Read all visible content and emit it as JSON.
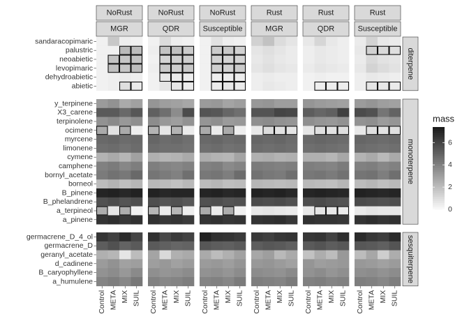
{
  "chart_data": {
    "type": "heatmap",
    "facet_columns": [
      {
        "rust": "NoRust",
        "genotype": "MGR"
      },
      {
        "rust": "NoRust",
        "genotype": "QDR"
      },
      {
        "rust": "NoRust",
        "genotype": "Susceptible"
      },
      {
        "rust": "Rust",
        "genotype": "MGR"
      },
      {
        "rust": "Rust",
        "genotype": "QDR"
      },
      {
        "rust": "Rust",
        "genotype": "Susceptible"
      }
    ],
    "x_categories": [
      "Control",
      "META",
      "MIX",
      "SUIL"
    ],
    "row_groups": [
      {
        "name": "diterpene",
        "compounds": [
          "sandaracopimaric",
          "palustric",
          "neoabietic",
          "levopimaric",
          "dehydroabietic",
          "abietic"
        ]
      },
      {
        "name": "monoterpene",
        "compounds": [
          "y_terpinene",
          "X3_carene",
          "terpinolene",
          "ocimene",
          "myrcene",
          "limonene",
          "cymene",
          "camphene",
          "bornyl_acetate",
          "borneol",
          "B_pinene",
          "B_phelandrene",
          "a_terpineol",
          "a_pinene"
        ]
      },
      {
        "name": "sesquiterpene",
        "compounds": [
          "germacrene_D_4_ol",
          "germacrene_D",
          "geranyl_acetate",
          "d_cadinene",
          "B_caryophyllene",
          "a_humulene"
        ]
      }
    ],
    "legend": {
      "title": "mass",
      "breaks": [
        0,
        2,
        4,
        6
      ],
      "limits": [
        0,
        7.4
      ],
      "color_low": "#f7f7f7",
      "color_high": "#1c1c1c"
    },
    "values": {
      "sandaracopimaric": [
        [
          0.2,
          1.6,
          0.3,
          0.2
        ],
        [
          0.2,
          0.9,
          0.3,
          0.2
        ],
        [
          0.2,
          0.7,
          0.3,
          0.2
        ],
        [
          1.3,
          1.8,
          0.9,
          0.6
        ],
        [
          0.5,
          1.1,
          0.5,
          0.3
        ],
        [
          0.4,
          1.2,
          0.5,
          0.4
        ]
      ],
      "palustric": [
        [
          0.2,
          0.2,
          2.1,
          2.0
        ],
        [
          0.3,
          1.8,
          1.9,
          1.5
        ],
        [
          0.2,
          1.5,
          1.6,
          1.3
        ],
        [
          0.6,
          0.8,
          0.6,
          0.4
        ],
        [
          0.3,
          0.5,
          0.4,
          0.3
        ],
        [
          0.5,
          1.3,
          1.0,
          0.8
        ]
      ],
      "neoabietic": [
        [
          0.2,
          1.8,
          1.7,
          1.8
        ],
        [
          0.2,
          1.2,
          1.4,
          1.4
        ],
        [
          0.2,
          1.3,
          1.2,
          1.2
        ],
        [
          0.5,
          0.7,
          0.5,
          0.4
        ],
        [
          0.3,
          0.5,
          0.4,
          0.3
        ],
        [
          0.4,
          1.0,
          0.7,
          0.6
        ]
      ],
      "levopimaric": [
        [
          0.2,
          1.9,
          1.7,
          2.0
        ],
        [
          0.3,
          1.6,
          1.4,
          1.6
        ],
        [
          0.2,
          1.4,
          1.3,
          1.5
        ],
        [
          0.6,
          0.8,
          0.6,
          0.5
        ],
        [
          0.4,
          0.6,
          0.5,
          0.4
        ],
        [
          0.5,
          1.2,
          0.9,
          0.7
        ]
      ],
      "dehydroabietic": [
        [
          0.2,
          0.3,
          0.4,
          0.3
        ],
        [
          0.2,
          0.5,
          0.4,
          0.3
        ],
        [
          0.2,
          0.3,
          0.3,
          0.3
        ],
        [
          0.3,
          0.4,
          0.3,
          0.3
        ],
        [
          0.2,
          0.3,
          0.2,
          0.2
        ],
        [
          0.3,
          0.5,
          0.4,
          0.3
        ]
      ],
      "abietic": [
        [
          0.2,
          0.3,
          0.8,
          0.4
        ],
        [
          0.2,
          0.6,
          0.6,
          0.4
        ],
        [
          0.2,
          0.4,
          0.5,
          0.4
        ],
        [
          0.3,
          0.5,
          0.4,
          0.3
        ],
        [
          0.2,
          0.3,
          0.3,
          0.3
        ],
        [
          0.3,
          0.6,
          0.5,
          0.4
        ]
      ],
      "y_terpinene": [
        [
          3.1,
          3.4,
          2.6,
          2.9
        ],
        [
          3.3,
          3.0,
          2.9,
          2.7
        ],
        [
          3.1,
          3.2,
          2.8,
          3.0
        ],
        [
          3.2,
          3.3,
          3.0,
          3.0
        ],
        [
          3.3,
          3.1,
          3.0,
          2.9
        ],
        [
          3.1,
          3.3,
          3.0,
          2.9
        ]
      ],
      "X3_carene": [
        [
          5.3,
          5.3,
          4.8,
          5.4
        ],
        [
          5.1,
          4.6,
          3.6,
          5.8
        ],
        [
          5.5,
          5.4,
          4.9,
          4.6
        ],
        [
          5.5,
          5.5,
          6.0,
          5.9
        ],
        [
          5.2,
          4.9,
          5.1,
          6.2
        ],
        [
          5.8,
          5.6,
          4.4,
          5.0
        ]
      ],
      "terpinolene": [
        [
          3.4,
          3.7,
          3.2,
          3.5
        ],
        [
          3.6,
          3.2,
          3.0,
          3.4
        ],
        [
          3.3,
          3.5,
          3.1,
          3.2
        ],
        [
          3.5,
          3.6,
          3.4,
          3.3
        ],
        [
          3.5,
          3.3,
          3.2,
          3.4
        ],
        [
          3.4,
          3.5,
          3.1,
          3.3
        ]
      ],
      "ocimene": [
        [
          2.6,
          0.7,
          2.6,
          0.3
        ],
        [
          2.3,
          0.6,
          2.3,
          0.4
        ],
        [
          2.6,
          0.4,
          2.6,
          0.3
        ],
        [
          0.5,
          0.9,
          0.7,
          0.6
        ],
        [
          0.6,
          0.8,
          0.7,
          0.8
        ],
        [
          0.5,
          0.8,
          0.7,
          0.8
        ]
      ],
      "myrcene": [
        [
          4.8,
          4.9,
          4.7,
          4.8
        ],
        [
          4.9,
          4.7,
          4.8,
          4.6
        ],
        [
          4.8,
          4.9,
          4.7,
          4.8
        ],
        [
          4.9,
          4.8,
          4.9,
          4.7
        ],
        [
          4.8,
          4.9,
          4.8,
          4.7
        ],
        [
          4.9,
          4.8,
          4.7,
          4.8
        ]
      ],
      "limonene": [
        [
          4.6,
          4.7,
          4.5,
          4.7
        ],
        [
          4.7,
          4.6,
          4.6,
          4.5
        ],
        [
          4.6,
          4.7,
          4.5,
          4.6
        ],
        [
          4.7,
          4.6,
          4.7,
          4.6
        ],
        [
          4.6,
          4.7,
          4.6,
          4.5
        ],
        [
          4.7,
          4.6,
          4.5,
          4.6
        ]
      ],
      "cymene": [
        [
          2.3,
          2.6,
          2.2,
          2.9
        ],
        [
          2.4,
          2.2,
          2.3,
          2.6
        ],
        [
          2.5,
          2.3,
          2.2,
          2.8
        ],
        [
          2.4,
          2.5,
          2.3,
          2.4
        ],
        [
          2.4,
          2.4,
          2.2,
          2.7
        ],
        [
          2.3,
          2.6,
          2.1,
          2.6
        ]
      ],
      "camphene": [
        [
          4.0,
          4.2,
          3.8,
          4.1
        ],
        [
          4.1,
          3.9,
          3.8,
          4.0
        ],
        [
          4.0,
          4.1,
          3.7,
          3.9
        ],
        [
          4.2,
          4.1,
          4.0,
          4.1
        ],
        [
          4.1,
          4.0,
          3.9,
          4.2
        ],
        [
          4.0,
          4.1,
          3.8,
          4.0
        ]
      ],
      "bornyl_acetate": [
        [
          4.2,
          4.5,
          4.3,
          4.8
        ],
        [
          4.4,
          4.2,
          4.0,
          4.6
        ],
        [
          4.3,
          4.4,
          4.1,
          4.7
        ],
        [
          4.5,
          4.3,
          4.2,
          4.6
        ],
        [
          4.3,
          4.4,
          4.2,
          4.5
        ],
        [
          4.4,
          4.5,
          4.1,
          4.6
        ]
      ],
      "borneol": [
        [
          2.0,
          2.3,
          1.9,
          2.2
        ],
        [
          2.1,
          2.0,
          1.8,
          2.1
        ],
        [
          2.0,
          2.2,
          1.9,
          2.0
        ],
        [
          2.2,
          2.1,
          2.0,
          2.1
        ],
        [
          2.1,
          2.0,
          1.9,
          2.2
        ],
        [
          2.0,
          2.2,
          1.9,
          2.1
        ]
      ],
      "B_pinene": [
        [
          7.1,
          7.2,
          7.0,
          7.2
        ],
        [
          7.2,
          7.0,
          7.1,
          7.1
        ],
        [
          7.1,
          7.2,
          7.0,
          7.1
        ],
        [
          7.2,
          7.1,
          7.2,
          7.0
        ],
        [
          7.1,
          7.2,
          7.1,
          7.0
        ],
        [
          7.2,
          7.1,
          7.0,
          7.1
        ]
      ],
      "B_phelandrene": [
        [
          5.6,
          5.8,
          5.5,
          5.7
        ],
        [
          5.7,
          5.5,
          5.6,
          5.4
        ],
        [
          5.6,
          5.7,
          5.5,
          5.6
        ],
        [
          5.8,
          5.7,
          5.8,
          5.6
        ],
        [
          5.7,
          5.8,
          5.6,
          5.5
        ],
        [
          5.8,
          5.7,
          5.6,
          5.7
        ]
      ],
      "a_terpineol": [
        [
          2.5,
          0.6,
          2.5,
          0.2
        ],
        [
          2.2,
          0.4,
          2.2,
          0.3
        ],
        [
          2.6,
          0.4,
          2.5,
          0.2
        ],
        [
          0.5,
          0.6,
          0.5,
          0.4
        ],
        [
          0.5,
          0.6,
          0.5,
          0.4
        ],
        [
          0.4,
          0.6,
          0.5,
          0.5
        ]
      ],
      "a_pinene": [
        [
          6.6,
          6.8,
          6.5,
          6.7
        ],
        [
          6.7,
          6.5,
          6.6,
          6.4
        ],
        [
          6.6,
          6.7,
          6.5,
          6.6
        ],
        [
          6.6,
          6.7,
          6.8,
          6.5
        ],
        [
          6.7,
          6.6,
          6.6,
          6.5
        ],
        [
          6.6,
          6.8,
          6.6,
          6.7
        ]
      ],
      "germacrene_D_4_ol": [
        [
          6.6,
          6.2,
          6.9,
          6.0
        ],
        [
          6.7,
          5.9,
          6.4,
          6.1
        ],
        [
          7.2,
          6.7,
          6.6,
          6.4
        ],
        [
          6.4,
          6.2,
          6.5,
          6.6
        ],
        [
          6.5,
          6.6,
          6.1,
          6.8
        ],
        [
          6.9,
          6.5,
          6.3,
          6.9
        ]
      ],
      "germacrene_D": [
        [
          5.2,
          5.6,
          5.0,
          5.3
        ],
        [
          5.3,
          5.1,
          4.9,
          5.0
        ],
        [
          5.4,
          5.2,
          5.1,
          5.3
        ],
        [
          5.2,
          5.4,
          5.3,
          5.1
        ],
        [
          5.3,
          5.5,
          5.2,
          5.4
        ],
        [
          5.4,
          5.3,
          5.1,
          5.5
        ]
      ],
      "geranyl_acetate": [
        [
          2.4,
          2.2,
          0.6,
          2.0
        ],
        [
          2.8,
          1.0,
          2.4,
          2.6
        ],
        [
          2.6,
          2.0,
          2.4,
          2.9
        ],
        [
          2.7,
          3.0,
          2.1,
          2.6
        ],
        [
          1.8,
          2.5,
          2.0,
          3.2
        ],
        [
          2.0,
          2.7,
          1.4,
          2.5
        ]
      ],
      "d_cadinene": [
        [
          3.1,
          3.4,
          2.9,
          3.0
        ],
        [
          3.0,
          3.2,
          2.9,
          3.1
        ],
        [
          3.1,
          3.2,
          3.0,
          3.3
        ],
        [
          3.2,
          3.3,
          3.1,
          2.9
        ],
        [
          3.3,
          3.0,
          3.1,
          3.2
        ],
        [
          3.2,
          3.1,
          2.9,
          3.1
        ]
      ],
      "B_caryophyllene": [
        [
          3.4,
          3.6,
          3.2,
          3.7
        ],
        [
          3.5,
          3.3,
          3.4,
          3.6
        ],
        [
          3.4,
          3.5,
          3.3,
          3.6
        ],
        [
          3.6,
          3.5,
          3.4,
          3.7
        ],
        [
          3.4,
          3.6,
          3.3,
          3.5
        ],
        [
          3.5,
          3.6,
          3.4,
          3.6
        ]
      ],
      "a_humulene": [
        [
          3.9,
          4.1,
          3.8,
          4.3
        ],
        [
          4.0,
          3.8,
          3.9,
          4.1
        ],
        [
          3.9,
          4.0,
          3.8,
          4.2
        ],
        [
          4.1,
          4.0,
          3.9,
          4.2
        ],
        [
          4.0,
          4.1,
          3.9,
          4.0
        ],
        [
          4.1,
          4.0,
          3.8,
          4.1
        ]
      ]
    },
    "highlighted_cells": {
      "palustric": [
        [
          0,
          2
        ],
        [
          0,
          3
        ],
        [
          1,
          1
        ],
        [
          1,
          2
        ],
        [
          1,
          3
        ],
        [
          2,
          1
        ],
        [
          2,
          2
        ],
        [
          2,
          3
        ],
        [
          5,
          1
        ],
        [
          5,
          2
        ],
        [
          5,
          3
        ]
      ],
      "neoabietic": [
        [
          0,
          1
        ],
        [
          0,
          2
        ],
        [
          0,
          3
        ],
        [
          1,
          1
        ],
        [
          1,
          2
        ],
        [
          1,
          3
        ],
        [
          2,
          1
        ],
        [
          2,
          2
        ],
        [
          2,
          3
        ]
      ],
      "levopimaric": [
        [
          0,
          1
        ],
        [
          0,
          2
        ],
        [
          0,
          3
        ],
        [
          1,
          1
        ],
        [
          1,
          2
        ],
        [
          1,
          3
        ],
        [
          2,
          1
        ],
        [
          2,
          2
        ],
        [
          2,
          3
        ]
      ],
      "dehydroabietic": [
        [
          1,
          1
        ],
        [
          1,
          2
        ],
        [
          1,
          3
        ],
        [
          2,
          1
        ],
        [
          2,
          2
        ],
        [
          2,
          3
        ]
      ],
      "abietic": [
        [
          0,
          2
        ],
        [
          0,
          3
        ],
        [
          1,
          2
        ],
        [
          1,
          3
        ],
        [
          2,
          1
        ],
        [
          2,
          2
        ],
        [
          2,
          3
        ],
        [
          4,
          1
        ],
        [
          4,
          2
        ],
        [
          4,
          3
        ],
        [
          5,
          1
        ],
        [
          5,
          2
        ],
        [
          5,
          3
        ]
      ],
      "ocimene": [
        [
          0,
          0
        ],
        [
          0,
          2
        ],
        [
          1,
          0
        ],
        [
          1,
          2
        ],
        [
          2,
          0
        ],
        [
          2,
          2
        ],
        [
          3,
          1
        ],
        [
          3,
          2
        ],
        [
          3,
          3
        ],
        [
          4,
          1
        ],
        [
          4,
          2
        ],
        [
          4,
          3
        ],
        [
          5,
          1
        ],
        [
          5,
          2
        ],
        [
          5,
          3
        ]
      ],
      "a_terpineol": [
        [
          0,
          0
        ],
        [
          0,
          2
        ],
        [
          1,
          0
        ],
        [
          1,
          2
        ],
        [
          2,
          0
        ],
        [
          2,
          2
        ],
        [
          4,
          1
        ],
        [
          4,
          2
        ],
        [
          4,
          3
        ]
      ]
    }
  }
}
